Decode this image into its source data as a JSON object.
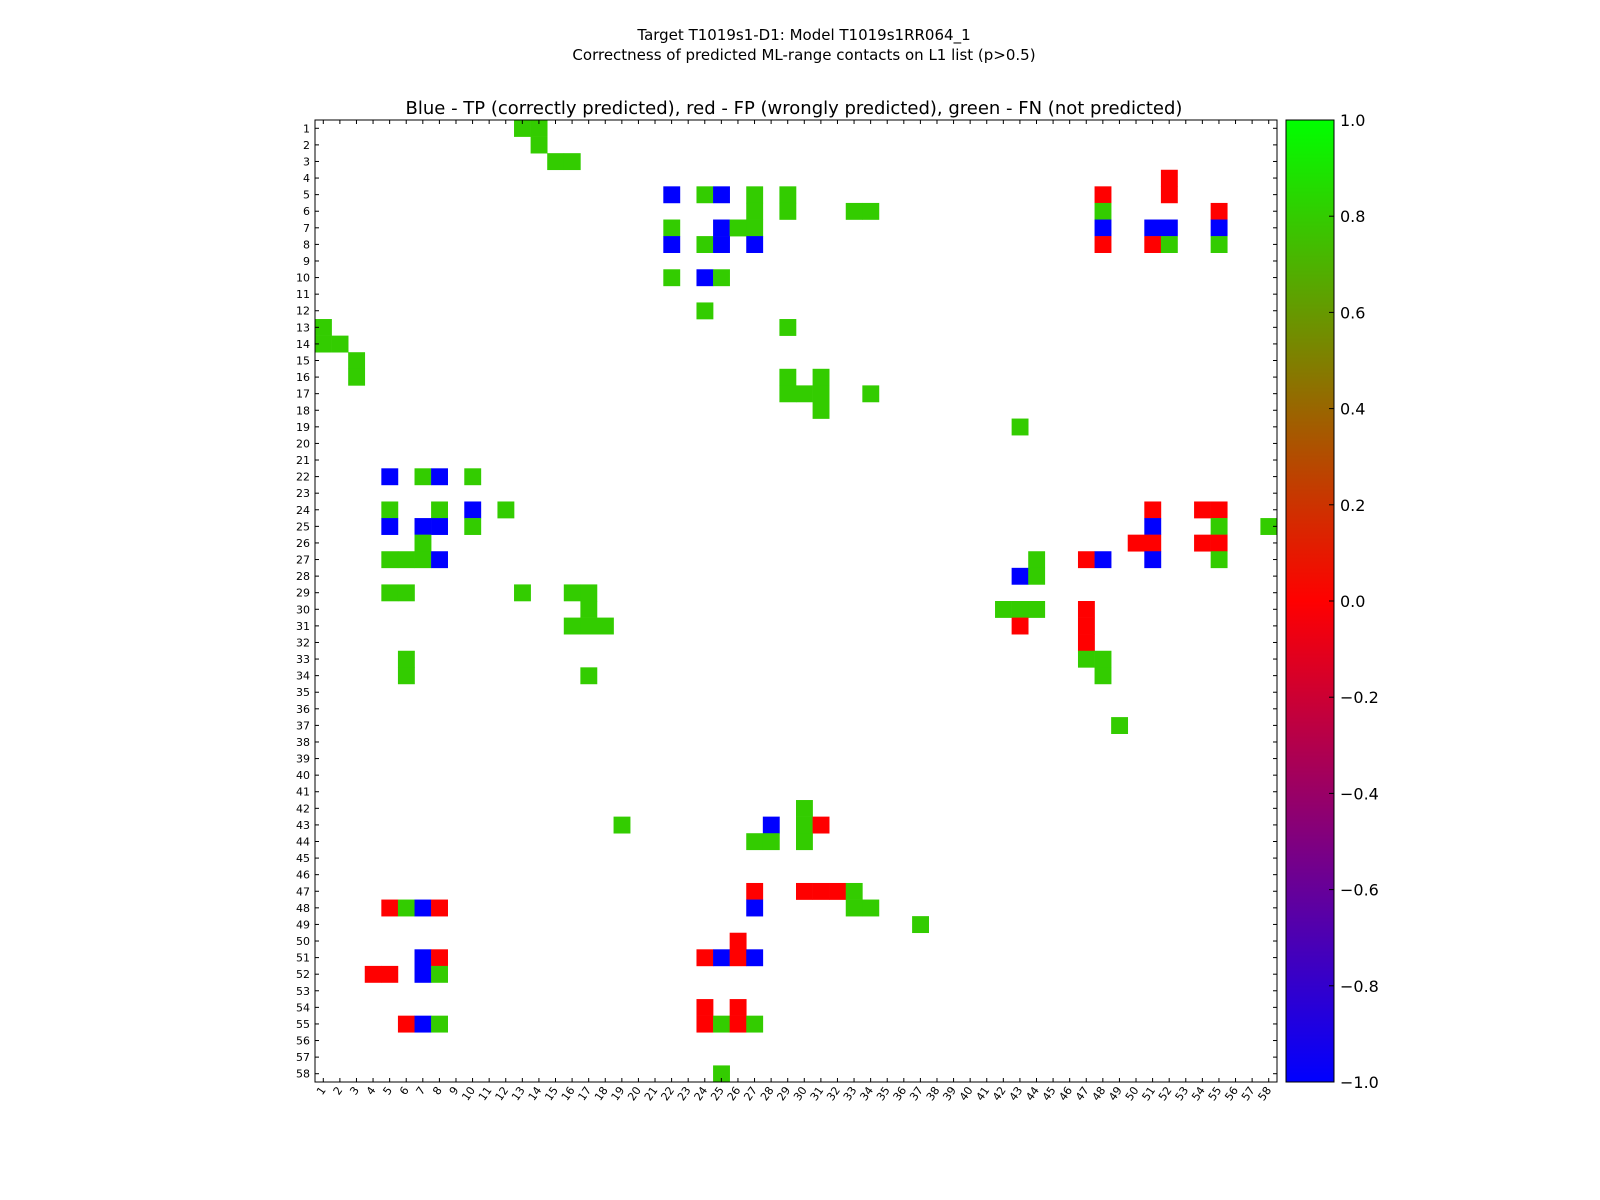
{
  "chart_data": {
    "type": "heatmap",
    "suptitle_line1": "Target T1019s1-D1: Model T1019s1RR064_1",
    "suptitle_line2": "Correctness of predicted ML-range contacts on L1 list (p>0.5)",
    "title": "Blue - TP (correctly predicted), red - FP (wrongly predicted), green - FN (not predicted)",
    "x_range": [
      1,
      58
    ],
    "y_range": [
      1,
      58
    ],
    "legend": {
      "TP": -1.0,
      "FP": 0.0,
      "FN": 0.8
    },
    "colors": {
      "TP": "#0000ff",
      "FP": "#ff0000",
      "FN": "#33cc00"
    },
    "colorbar": {
      "ticks": [
        "1.0",
        "0.8",
        "0.6",
        "0.4",
        "0.2",
        "0.0",
        "−0.2",
        "−0.4",
        "−0.6",
        "−0.8",
        "−1.0"
      ],
      "range": [
        -1.0,
        1.0
      ],
      "gradient": [
        "#0000ff",
        "#ff0000",
        "#00ff00"
      ]
    },
    "cells": [
      {
        "x": 13,
        "y": 1,
        "v": 0.8
      },
      {
        "x": 14,
        "y": 1,
        "v": 0.8
      },
      {
        "x": 14,
        "y": 2,
        "v": 0.8
      },
      {
        "x": 15,
        "y": 3,
        "v": 0.8
      },
      {
        "x": 16,
        "y": 3,
        "v": 0.8
      },
      {
        "x": 52,
        "y": 4,
        "v": 0.0
      },
      {
        "x": 22,
        "y": 5,
        "v": -1.0
      },
      {
        "x": 24,
        "y": 5,
        "v": 0.8
      },
      {
        "x": 25,
        "y": 5,
        "v": -1.0
      },
      {
        "x": 27,
        "y": 5,
        "v": 0.8
      },
      {
        "x": 29,
        "y": 5,
        "v": 0.8
      },
      {
        "x": 48,
        "y": 5,
        "v": 0.0
      },
      {
        "x": 52,
        "y": 5,
        "v": 0.0
      },
      {
        "x": 27,
        "y": 6,
        "v": 0.8
      },
      {
        "x": 29,
        "y": 6,
        "v": 0.8
      },
      {
        "x": 33,
        "y": 6,
        "v": 0.8
      },
      {
        "x": 34,
        "y": 6,
        "v": 0.8
      },
      {
        "x": 48,
        "y": 6,
        "v": 0.8
      },
      {
        "x": 55,
        "y": 6,
        "v": 0.0
      },
      {
        "x": 22,
        "y": 7,
        "v": 0.8
      },
      {
        "x": 25,
        "y": 7,
        "v": -1.0
      },
      {
        "x": 26,
        "y": 7,
        "v": 0.8
      },
      {
        "x": 27,
        "y": 7,
        "v": 0.8
      },
      {
        "x": 48,
        "y": 7,
        "v": -1.0
      },
      {
        "x": 51,
        "y": 7,
        "v": -1.0
      },
      {
        "x": 52,
        "y": 7,
        "v": -1.0
      },
      {
        "x": 55,
        "y": 7,
        "v": -1.0
      },
      {
        "x": 22,
        "y": 8,
        "v": -1.0
      },
      {
        "x": 24,
        "y": 8,
        "v": 0.8
      },
      {
        "x": 25,
        "y": 8,
        "v": -1.0
      },
      {
        "x": 27,
        "y": 8,
        "v": -1.0
      },
      {
        "x": 48,
        "y": 8,
        "v": 0.0
      },
      {
        "x": 51,
        "y": 8,
        "v": 0.0
      },
      {
        "x": 52,
        "y": 8,
        "v": 0.8
      },
      {
        "x": 55,
        "y": 8,
        "v": 0.8
      },
      {
        "x": 22,
        "y": 10,
        "v": 0.8
      },
      {
        "x": 24,
        "y": 10,
        "v": -1.0
      },
      {
        "x": 25,
        "y": 10,
        "v": 0.8
      },
      {
        "x": 24,
        "y": 12,
        "v": 0.8
      },
      {
        "x": 1,
        "y": 13,
        "v": 0.8
      },
      {
        "x": 29,
        "y": 13,
        "v": 0.8
      },
      {
        "x": 1,
        "y": 14,
        "v": 0.8
      },
      {
        "x": 2,
        "y": 14,
        "v": 0.8
      },
      {
        "x": 3,
        "y": 15,
        "v": 0.8
      },
      {
        "x": 3,
        "y": 16,
        "v": 0.8
      },
      {
        "x": 29,
        "y": 16,
        "v": 0.8
      },
      {
        "x": 31,
        "y": 16,
        "v": 0.8
      },
      {
        "x": 29,
        "y": 17,
        "v": 0.8
      },
      {
        "x": 30,
        "y": 17,
        "v": 0.8
      },
      {
        "x": 31,
        "y": 17,
        "v": 0.8
      },
      {
        "x": 34,
        "y": 17,
        "v": 0.8
      },
      {
        "x": 31,
        "y": 18,
        "v": 0.8
      },
      {
        "x": 43,
        "y": 19,
        "v": 0.8
      },
      {
        "x": 5,
        "y": 22,
        "v": -1.0
      },
      {
        "x": 7,
        "y": 22,
        "v": 0.8
      },
      {
        "x": 8,
        "y": 22,
        "v": -1.0
      },
      {
        "x": 10,
        "y": 22,
        "v": 0.8
      },
      {
        "x": 5,
        "y": 24,
        "v": 0.8
      },
      {
        "x": 8,
        "y": 24,
        "v": 0.8
      },
      {
        "x": 10,
        "y": 24,
        "v": -1.0
      },
      {
        "x": 12,
        "y": 24,
        "v": 0.8
      },
      {
        "x": 51,
        "y": 24,
        "v": 0.0
      },
      {
        "x": 54,
        "y": 24,
        "v": 0.0
      },
      {
        "x": 55,
        "y": 24,
        "v": 0.0
      },
      {
        "x": 5,
        "y": 25,
        "v": -1.0
      },
      {
        "x": 7,
        "y": 25,
        "v": -1.0
      },
      {
        "x": 8,
        "y": 25,
        "v": -1.0
      },
      {
        "x": 10,
        "y": 25,
        "v": 0.8
      },
      {
        "x": 51,
        "y": 25,
        "v": -1.0
      },
      {
        "x": 55,
        "y": 25,
        "v": 0.8
      },
      {
        "x": 58,
        "y": 25,
        "v": 0.8
      },
      {
        "x": 7,
        "y": 26,
        "v": 0.8
      },
      {
        "x": 50,
        "y": 26,
        "v": 0.0
      },
      {
        "x": 51,
        "y": 26,
        "v": 0.0
      },
      {
        "x": 54,
        "y": 26,
        "v": 0.0
      },
      {
        "x": 55,
        "y": 26,
        "v": 0.0
      },
      {
        "x": 5,
        "y": 27,
        "v": 0.8
      },
      {
        "x": 6,
        "y": 27,
        "v": 0.8
      },
      {
        "x": 7,
        "y": 27,
        "v": 0.8
      },
      {
        "x": 8,
        "y": 27,
        "v": -1.0
      },
      {
        "x": 44,
        "y": 27,
        "v": 0.8
      },
      {
        "x": 47,
        "y": 27,
        "v": 0.0
      },
      {
        "x": 48,
        "y": 27,
        "v": -1.0
      },
      {
        "x": 51,
        "y": 27,
        "v": -1.0
      },
      {
        "x": 55,
        "y": 27,
        "v": 0.8
      },
      {
        "x": 43,
        "y": 28,
        "v": -1.0
      },
      {
        "x": 44,
        "y": 28,
        "v": 0.8
      },
      {
        "x": 5,
        "y": 29,
        "v": 0.8
      },
      {
        "x": 6,
        "y": 29,
        "v": 0.8
      },
      {
        "x": 13,
        "y": 29,
        "v": 0.8
      },
      {
        "x": 16,
        "y": 29,
        "v": 0.8
      },
      {
        "x": 17,
        "y": 29,
        "v": 0.8
      },
      {
        "x": 17,
        "y": 30,
        "v": 0.8
      },
      {
        "x": 42,
        "y": 30,
        "v": 0.8
      },
      {
        "x": 43,
        "y": 30,
        "v": 0.8
      },
      {
        "x": 44,
        "y": 30,
        "v": 0.8
      },
      {
        "x": 47,
        "y": 30,
        "v": 0.0
      },
      {
        "x": 16,
        "y": 31,
        "v": 0.8
      },
      {
        "x": 17,
        "y": 31,
        "v": 0.8
      },
      {
        "x": 18,
        "y": 31,
        "v": 0.8
      },
      {
        "x": 43,
        "y": 31,
        "v": 0.0
      },
      {
        "x": 47,
        "y": 31,
        "v": 0.0
      },
      {
        "x": 47,
        "y": 32,
        "v": 0.0
      },
      {
        "x": 6,
        "y": 33,
        "v": 0.8
      },
      {
        "x": 47,
        "y": 33,
        "v": 0.8
      },
      {
        "x": 48,
        "y": 33,
        "v": 0.8
      },
      {
        "x": 6,
        "y": 34,
        "v": 0.8
      },
      {
        "x": 17,
        "y": 34,
        "v": 0.8
      },
      {
        "x": 48,
        "y": 34,
        "v": 0.8
      },
      {
        "x": 49,
        "y": 37,
        "v": 0.8
      },
      {
        "x": 30,
        "y": 42,
        "v": 0.8
      },
      {
        "x": 19,
        "y": 43,
        "v": 0.8
      },
      {
        "x": 28,
        "y": 43,
        "v": -1.0
      },
      {
        "x": 30,
        "y": 43,
        "v": 0.8
      },
      {
        "x": 31,
        "y": 43,
        "v": 0.0
      },
      {
        "x": 27,
        "y": 44,
        "v": 0.8
      },
      {
        "x": 28,
        "y": 44,
        "v": 0.8
      },
      {
        "x": 30,
        "y": 44,
        "v": 0.8
      },
      {
        "x": 27,
        "y": 47,
        "v": 0.0
      },
      {
        "x": 30,
        "y": 47,
        "v": 0.0
      },
      {
        "x": 31,
        "y": 47,
        "v": 0.0
      },
      {
        "x": 32,
        "y": 47,
        "v": 0.0
      },
      {
        "x": 33,
        "y": 47,
        "v": 0.8
      },
      {
        "x": 5,
        "y": 48,
        "v": 0.0
      },
      {
        "x": 6,
        "y": 48,
        "v": 0.8
      },
      {
        "x": 7,
        "y": 48,
        "v": -1.0
      },
      {
        "x": 8,
        "y": 48,
        "v": 0.0
      },
      {
        "x": 27,
        "y": 48,
        "v": -1.0
      },
      {
        "x": 33,
        "y": 48,
        "v": 0.8
      },
      {
        "x": 34,
        "y": 48,
        "v": 0.8
      },
      {
        "x": 37,
        "y": 49,
        "v": 0.8
      },
      {
        "x": 26,
        "y": 50,
        "v": 0.0
      },
      {
        "x": 7,
        "y": 51,
        "v": -1.0
      },
      {
        "x": 8,
        "y": 51,
        "v": 0.0
      },
      {
        "x": 24,
        "y": 51,
        "v": 0.0
      },
      {
        "x": 25,
        "y": 51,
        "v": -1.0
      },
      {
        "x": 26,
        "y": 51,
        "v": 0.0
      },
      {
        "x": 27,
        "y": 51,
        "v": -1.0
      },
      {
        "x": 4,
        "y": 52,
        "v": 0.0
      },
      {
        "x": 5,
        "y": 52,
        "v": 0.0
      },
      {
        "x": 7,
        "y": 52,
        "v": -1.0
      },
      {
        "x": 8,
        "y": 52,
        "v": 0.8
      },
      {
        "x": 24,
        "y": 54,
        "v": 0.0
      },
      {
        "x": 26,
        "y": 54,
        "v": 0.0
      },
      {
        "x": 6,
        "y": 55,
        "v": 0.0
      },
      {
        "x": 7,
        "y": 55,
        "v": -1.0
      },
      {
        "x": 8,
        "y": 55,
        "v": 0.8
      },
      {
        "x": 24,
        "y": 55,
        "v": 0.0
      },
      {
        "x": 25,
        "y": 55,
        "v": 0.8
      },
      {
        "x": 26,
        "y": 55,
        "v": 0.0
      },
      {
        "x": 27,
        "y": 55,
        "v": 0.8
      },
      {
        "x": 25,
        "y": 58,
        "v": 0.8
      }
    ]
  }
}
